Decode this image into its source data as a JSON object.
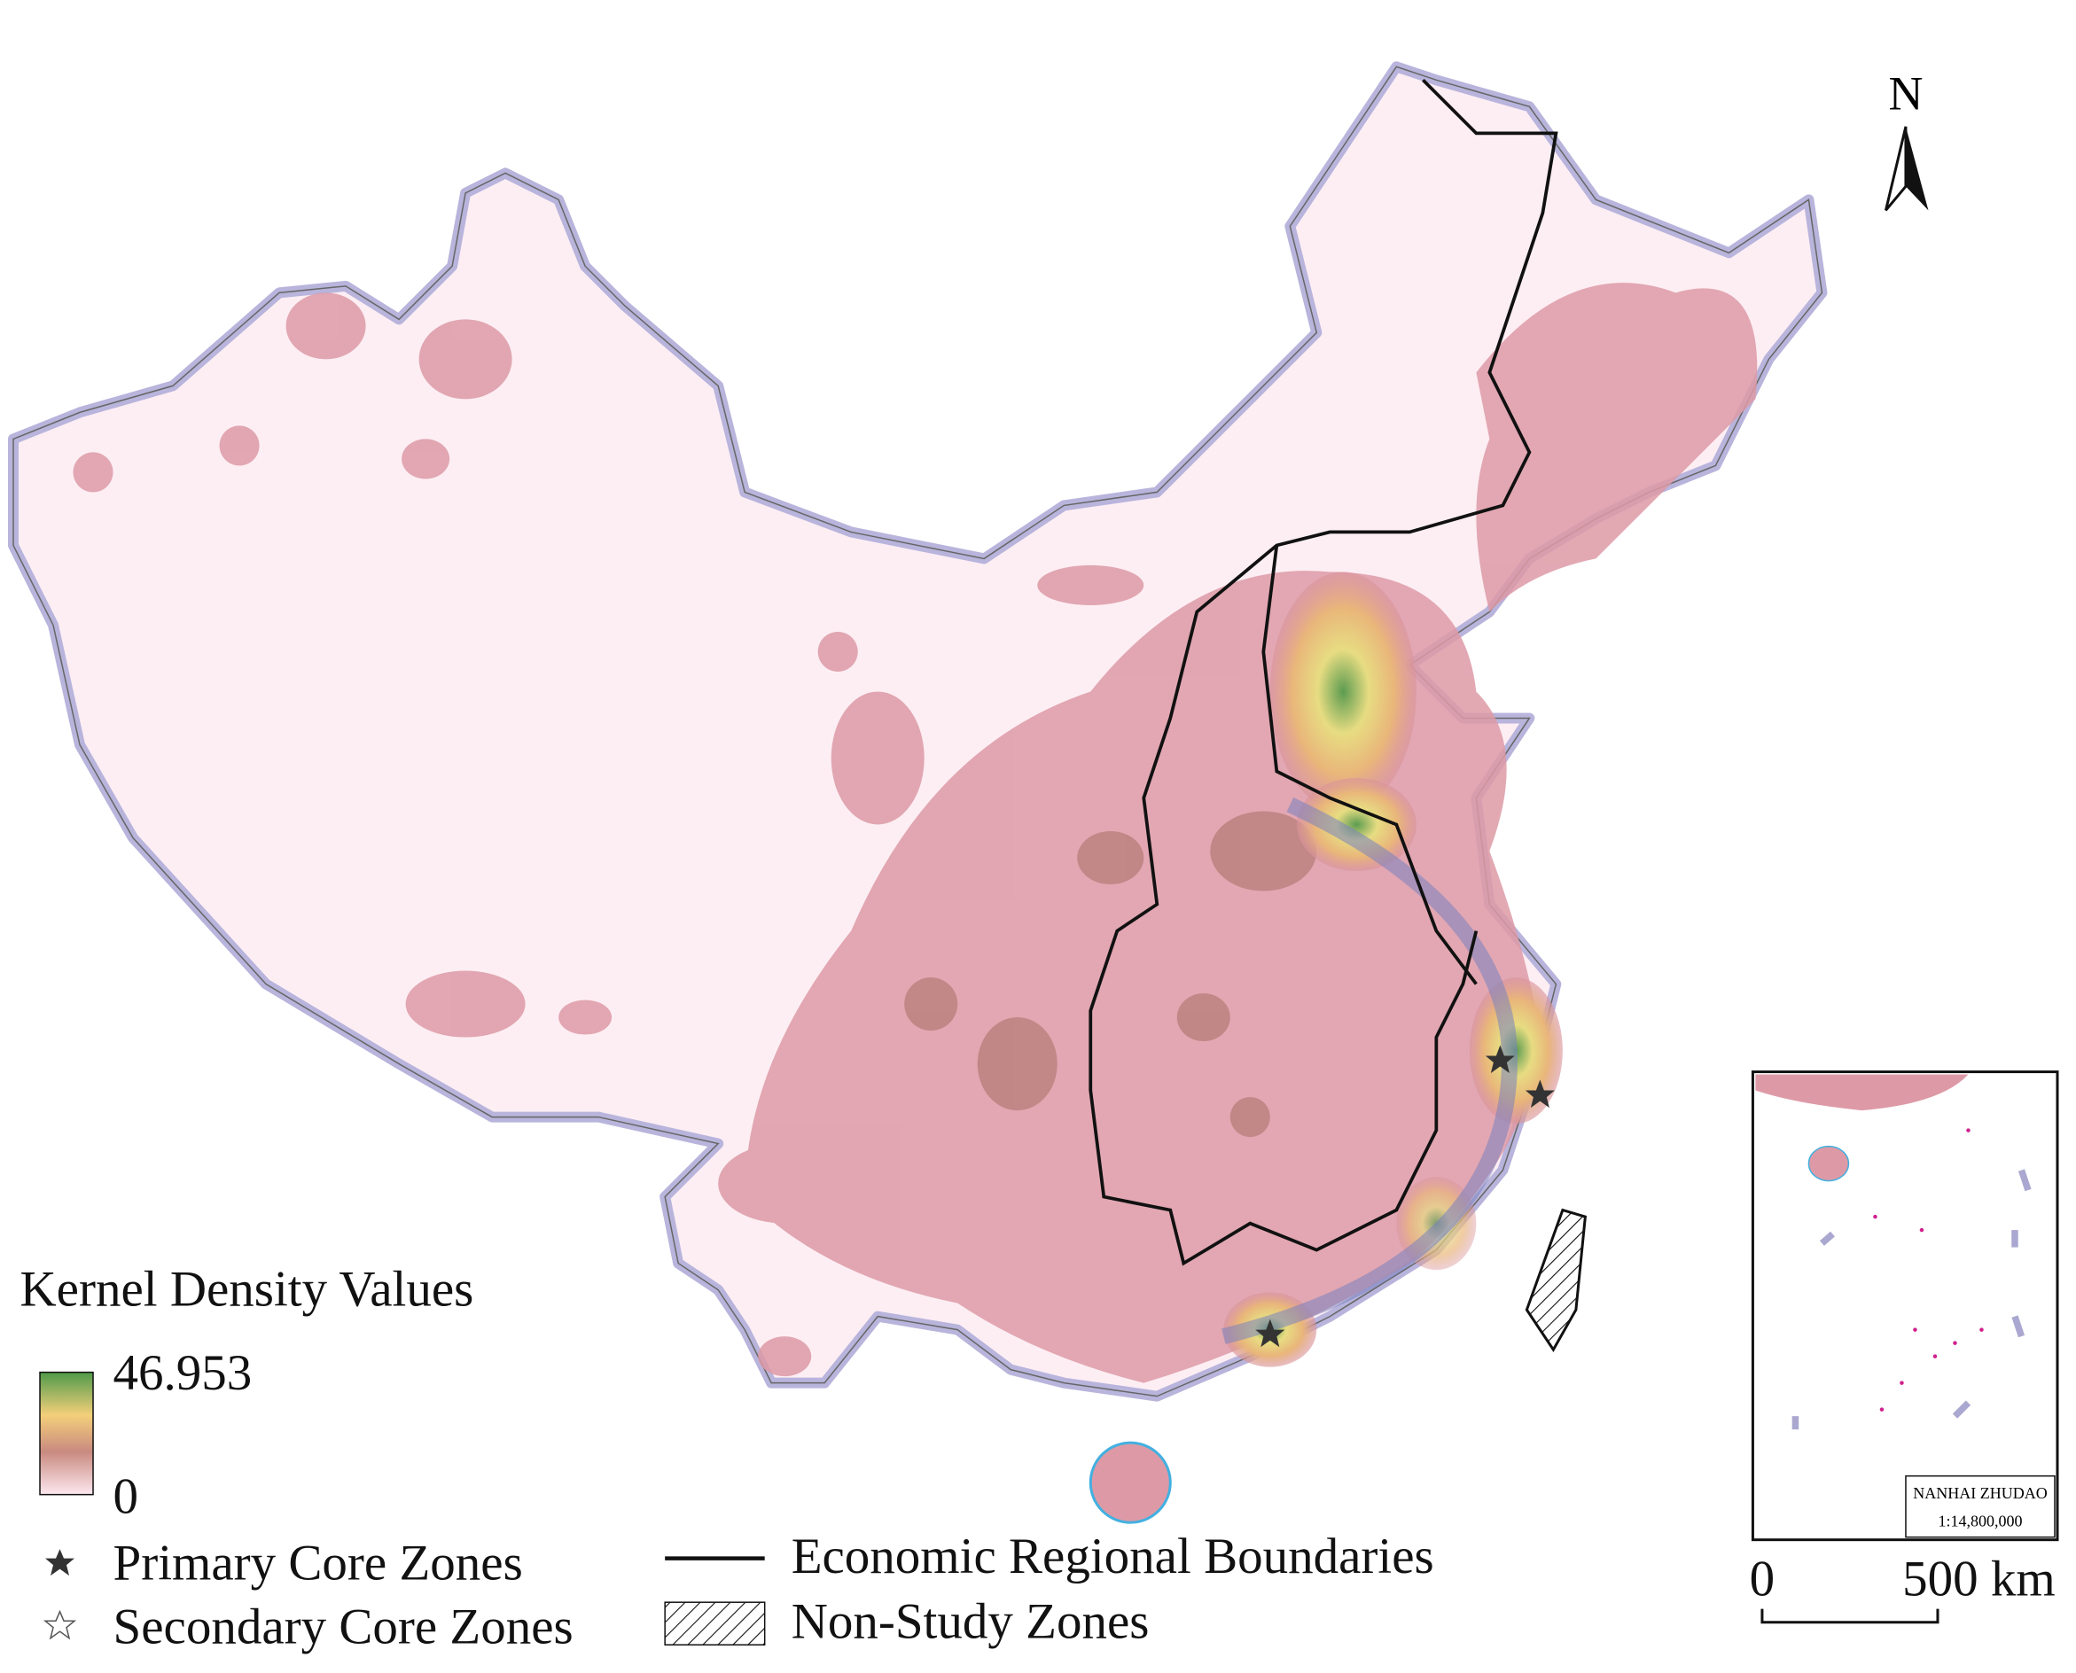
{
  "north": "N",
  "legend": {
    "title": "Kernel Density Values",
    "max": "46.953",
    "min": "0",
    "primary": "Primary Core Zones",
    "secondary": "Secondary Core Zones",
    "boundaries": "Economic Regional Boundaries",
    "non_study": "Non-Study Zones"
  },
  "inset": {
    "name": "NANHAI ZHUDAO",
    "scale": "1:14,800,000"
  },
  "scale_bar": {
    "start": "0",
    "end": "500 km"
  }
}
